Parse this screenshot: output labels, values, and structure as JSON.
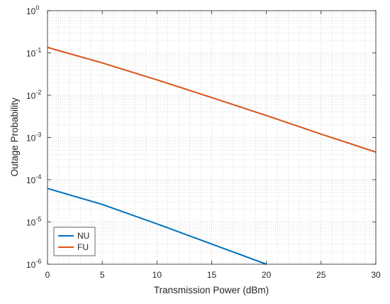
{
  "chart_data": {
    "type": "line",
    "title": "",
    "xlabel": "Transmission Power (dBm)",
    "ylabel": "Outage Probability",
    "xlim": [
      0,
      30
    ],
    "ylim": [
      1e-06,
      1
    ],
    "yscale": "log",
    "grid": true,
    "minor_grid": true,
    "legend_position": "bottom-left",
    "x_ticks": [
      0,
      5,
      10,
      15,
      20,
      25,
      30
    ],
    "x_tick_labels": [
      "0",
      "5",
      "10",
      "15",
      "20",
      "25",
      "30"
    ],
    "y_ticks": [
      {
        "value": 1e-06,
        "base": "10",
        "exp": "-6"
      },
      {
        "value": 1e-05,
        "base": "10",
        "exp": "-5"
      },
      {
        "value": 0.0001,
        "base": "10",
        "exp": "-4"
      },
      {
        "value": 0.001,
        "base": "10",
        "exp": "-3"
      },
      {
        "value": 0.01,
        "base": "10",
        "exp": "-2"
      },
      {
        "value": 0.1,
        "base": "10",
        "exp": "-1"
      },
      {
        "value": 1,
        "base": "10",
        "exp": "0"
      }
    ],
    "series": [
      {
        "name": "NU",
        "color": "#0072BD",
        "x": [
          0,
          5,
          10,
          15,
          20
        ],
        "y": [
          6.2e-05,
          2.6e-05,
          9e-06,
          3e-06,
          1e-06
        ]
      },
      {
        "name": "FU",
        "color": "#D95319",
        "x": [
          0,
          5,
          10,
          15,
          20,
          25,
          30
        ],
        "y": [
          0.135,
          0.058,
          0.023,
          0.0088,
          0.0033,
          0.0012,
          0.00045
        ]
      }
    ]
  }
}
